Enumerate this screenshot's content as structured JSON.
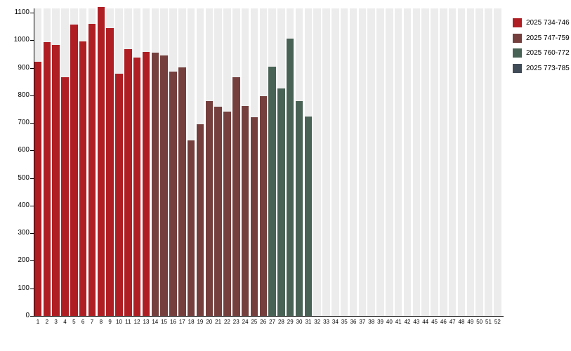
{
  "chart_data": {
    "type": "bar",
    "title": "",
    "xlabel": "",
    "ylabel": "",
    "x_categories": [
      "1",
      "2",
      "3",
      "4",
      "5",
      "6",
      "7",
      "8",
      "9",
      "10",
      "11",
      "12",
      "13",
      "14",
      "15",
      "16",
      "17",
      "18",
      "19",
      "20",
      "21",
      "22",
      "23",
      "24",
      "25",
      "26",
      "27",
      "28",
      "29",
      "30",
      "31",
      "32",
      "33",
      "34",
      "35",
      "36",
      "37",
      "38",
      "39",
      "40",
      "41",
      "42",
      "43",
      "44",
      "45",
      "46",
      "47",
      "48",
      "49",
      "50",
      "51",
      "52"
    ],
    "yticks": [
      0,
      100,
      200,
      300,
      400,
      500,
      600,
      700,
      800,
      900,
      1000,
      1100
    ],
    "ylim": [
      0,
      1150
    ],
    "grid": false,
    "legend_position": "top-right",
    "plot_background": "#ffffff",
    "stripe_color": "#ececec",
    "axis_color": "#000000",
    "legend": [
      {
        "label": "2025 734-746",
        "color": "#af1e23"
      },
      {
        "label": "2025 747-759",
        "color": "#743f3d"
      },
      {
        "label": "2025 760-772",
        "color": "#486355"
      },
      {
        "label": "2025 773-785",
        "color": "#414c59"
      }
    ],
    "series": [
      {
        "name": "2025 734-746",
        "color": "#af1e23",
        "weeks": [
          1,
          2,
          3,
          4,
          5,
          6,
          7,
          8,
          9,
          10,
          11,
          12,
          13
        ],
        "values": [
          922,
          992,
          984,
          866,
          1057,
          996,
          1059,
          1120,
          1044,
          879,
          968,
          938,
          957
        ]
      },
      {
        "name": "2025 747-759",
        "color": "#743f3d",
        "weeks": [
          14,
          15,
          16,
          17,
          18,
          19,
          20,
          21,
          22,
          23,
          24,
          25,
          26
        ],
        "values": [
          954,
          946,
          885,
          901,
          637,
          694,
          779,
          760,
          742,
          867,
          762,
          720,
          798
        ]
      },
      {
        "name": "2025 760-772",
        "color": "#486355",
        "weeks": [
          27,
          28,
          29,
          30,
          31
        ],
        "values": [
          904,
          825,
          1006,
          778,
          723
        ]
      },
      {
        "name": "2025 773-785",
        "color": "#414c59",
        "weeks": [],
        "values": []
      }
    ]
  }
}
